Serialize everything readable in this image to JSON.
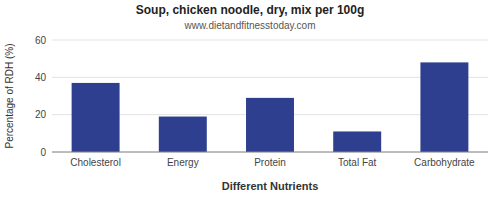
{
  "chart_data": {
    "type": "bar",
    "title": "Soup, chicken noodle, dry, mix per 100g",
    "subtitle": "www.dietandfitnesstoday.com",
    "xlabel": "Different Nutrients",
    "ylabel": "Percentage of RDH (%)",
    "categories": [
      "Cholesterol",
      "Energy",
      "Protein",
      "Total Fat",
      "Carbohydrate"
    ],
    "values": [
      37,
      19,
      29,
      11,
      48
    ],
    "color": "#2e3f8f",
    "ylim": [
      0,
      60
    ],
    "yticks": [
      0,
      20,
      40,
      60
    ],
    "grid": true
  }
}
